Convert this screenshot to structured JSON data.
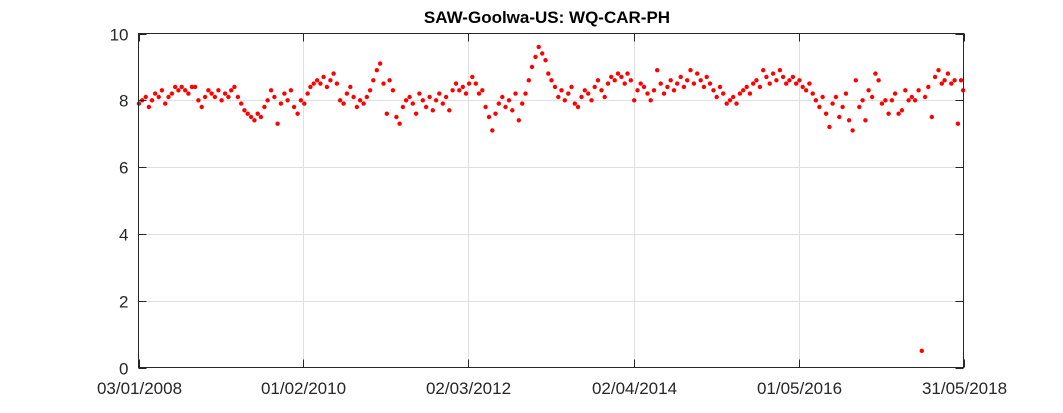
{
  "chart_data": {
    "type": "scatter",
    "title": "SAW-Goolwa-US: WQ-CAR-PH",
    "xlabel": "",
    "ylabel": "",
    "xlim": [
      "2008-01-03",
      "2018-05-31"
    ],
    "ylim": [
      0,
      10
    ],
    "x_ticks": [
      "03/01/2008",
      "01/02/2010",
      "02/03/2012",
      "02/04/2014",
      "01/05/2016",
      "31/05/2018"
    ],
    "x_tick_dates": [
      "2008-01-03",
      "2010-02-01",
      "2012-03-02",
      "2014-04-02",
      "2016-05-01",
      "2018-05-31"
    ],
    "y_ticks": [
      "0",
      "2",
      "4",
      "6",
      "8",
      "10"
    ],
    "y_tick_values": [
      0,
      2,
      4,
      6,
      8,
      10
    ],
    "grid": true,
    "marker_color": "#ff0000",
    "series": [
      {
        "name": "",
        "points": [
          [
            "2008-01-05",
            7.9
          ],
          [
            "2008-01-20",
            8.0
          ],
          [
            "2008-02-05",
            8.1
          ],
          [
            "2008-02-20",
            7.8
          ],
          [
            "2008-03-05",
            8.0
          ],
          [
            "2008-03-20",
            8.2
          ],
          [
            "2008-04-05",
            8.1
          ],
          [
            "2008-04-20",
            8.3
          ],
          [
            "2008-05-05",
            7.9
          ],
          [
            "2008-05-20",
            8.1
          ],
          [
            "2008-06-05",
            8.2
          ],
          [
            "2008-06-20",
            8.4
          ],
          [
            "2008-07-05",
            8.3
          ],
          [
            "2008-07-20",
            8.4
          ],
          [
            "2008-08-05",
            8.3
          ],
          [
            "2008-08-20",
            8.2
          ],
          [
            "2008-09-05",
            8.4
          ],
          [
            "2008-09-20",
            8.4
          ],
          [
            "2008-10-05",
            8.0
          ],
          [
            "2008-10-20",
            7.8
          ],
          [
            "2008-11-05",
            8.1
          ],
          [
            "2008-11-20",
            8.3
          ],
          [
            "2008-12-05",
            8.2
          ],
          [
            "2008-12-20",
            8.1
          ],
          [
            "2009-01-05",
            8.3
          ],
          [
            "2009-01-20",
            8.0
          ],
          [
            "2009-02-05",
            8.2
          ],
          [
            "2009-02-20",
            8.1
          ],
          [
            "2009-03-05",
            8.3
          ],
          [
            "2009-03-20",
            8.4
          ],
          [
            "2009-04-05",
            8.1
          ],
          [
            "2009-04-20",
            7.9
          ],
          [
            "2009-05-05",
            7.7
          ],
          [
            "2009-05-20",
            7.6
          ],
          [
            "2009-06-05",
            7.5
          ],
          [
            "2009-06-20",
            7.4
          ],
          [
            "2009-07-05",
            7.6
          ],
          [
            "2009-07-20",
            7.5
          ],
          [
            "2009-08-05",
            7.8
          ],
          [
            "2009-08-20",
            8.0
          ],
          [
            "2009-09-05",
            8.3
          ],
          [
            "2009-09-20",
            8.1
          ],
          [
            "2009-10-05",
            7.3
          ],
          [
            "2009-10-20",
            7.9
          ],
          [
            "2009-11-05",
            8.2
          ],
          [
            "2009-11-20",
            8.0
          ],
          [
            "2009-12-05",
            8.3
          ],
          [
            "2009-12-20",
            7.8
          ],
          [
            "2010-01-05",
            7.6
          ],
          [
            "2010-01-20",
            8.0
          ],
          [
            "2010-02-05",
            7.9
          ],
          [
            "2010-02-20",
            8.2
          ],
          [
            "2010-03-05",
            8.4
          ],
          [
            "2010-03-20",
            8.5
          ],
          [
            "2010-04-05",
            8.6
          ],
          [
            "2010-04-20",
            8.5
          ],
          [
            "2010-05-05",
            8.7
          ],
          [
            "2010-05-20",
            8.4
          ],
          [
            "2010-06-05",
            8.6
          ],
          [
            "2010-06-20",
            8.8
          ],
          [
            "2010-07-05",
            8.5
          ],
          [
            "2010-07-20",
            8.0
          ],
          [
            "2010-08-05",
            7.9
          ],
          [
            "2010-08-20",
            8.2
          ],
          [
            "2010-09-05",
            8.4
          ],
          [
            "2010-09-20",
            8.1
          ],
          [
            "2010-10-05",
            7.8
          ],
          [
            "2010-10-20",
            8.0
          ],
          [
            "2010-11-05",
            7.9
          ],
          [
            "2010-11-20",
            8.1
          ],
          [
            "2010-12-05",
            8.3
          ],
          [
            "2010-12-20",
            8.6
          ],
          [
            "2011-01-05",
            8.9
          ],
          [
            "2011-01-20",
            9.1
          ],
          [
            "2011-02-05",
            8.5
          ],
          [
            "2011-02-20",
            7.6
          ],
          [
            "2011-03-05",
            8.6
          ],
          [
            "2011-03-20",
            8.3
          ],
          [
            "2011-04-05",
            7.5
          ],
          [
            "2011-04-20",
            7.3
          ],
          [
            "2011-05-05",
            7.8
          ],
          [
            "2011-05-20",
            8.0
          ],
          [
            "2011-06-05",
            8.1
          ],
          [
            "2011-06-20",
            7.9
          ],
          [
            "2011-07-05",
            7.6
          ],
          [
            "2011-07-20",
            8.2
          ],
          [
            "2011-08-05",
            8.0
          ],
          [
            "2011-08-20",
            7.8
          ],
          [
            "2011-09-05",
            8.1
          ],
          [
            "2011-09-20",
            7.7
          ],
          [
            "2011-10-05",
            8.0
          ],
          [
            "2011-10-20",
            8.2
          ],
          [
            "2011-11-05",
            7.9
          ],
          [
            "2011-11-20",
            8.1
          ],
          [
            "2011-12-05",
            7.7
          ],
          [
            "2011-12-20",
            8.3
          ],
          [
            "2012-01-05",
            8.5
          ],
          [
            "2012-01-20",
            8.3
          ],
          [
            "2012-02-05",
            8.4
          ],
          [
            "2012-02-20",
            8.2
          ],
          [
            "2012-03-05",
            8.5
          ],
          [
            "2012-03-20",
            8.7
          ],
          [
            "2012-04-05",
            8.5
          ],
          [
            "2012-04-20",
            8.2
          ],
          [
            "2012-05-05",
            8.3
          ],
          [
            "2012-05-20",
            7.8
          ],
          [
            "2012-06-05",
            7.5
          ],
          [
            "2012-06-20",
            7.1
          ],
          [
            "2012-07-05",
            7.6
          ],
          [
            "2012-07-20",
            7.9
          ],
          [
            "2012-08-05",
            8.1
          ],
          [
            "2012-08-20",
            7.8
          ],
          [
            "2012-09-05",
            8.0
          ],
          [
            "2012-09-20",
            7.7
          ],
          [
            "2012-10-05",
            8.2
          ],
          [
            "2012-10-20",
            7.4
          ],
          [
            "2012-11-05",
            7.9
          ],
          [
            "2012-11-20",
            8.2
          ],
          [
            "2012-12-05",
            8.6
          ],
          [
            "2012-12-20",
            9.0
          ],
          [
            "2013-01-05",
            9.3
          ],
          [
            "2013-01-20",
            9.6
          ],
          [
            "2013-02-05",
            9.4
          ],
          [
            "2013-02-20",
            9.2
          ],
          [
            "2013-03-05",
            8.8
          ],
          [
            "2013-03-20",
            8.6
          ],
          [
            "2013-04-05",
            8.4
          ],
          [
            "2013-04-20",
            8.1
          ],
          [
            "2013-05-05",
            8.3
          ],
          [
            "2013-05-20",
            8.0
          ],
          [
            "2013-06-05",
            8.2
          ],
          [
            "2013-06-20",
            8.4
          ],
          [
            "2013-07-05",
            7.9
          ],
          [
            "2013-07-20",
            7.8
          ],
          [
            "2013-08-05",
            8.1
          ],
          [
            "2013-08-20",
            8.3
          ],
          [
            "2013-09-05",
            8.2
          ],
          [
            "2013-09-20",
            8.0
          ],
          [
            "2013-10-05",
            8.4
          ],
          [
            "2013-10-20",
            8.6
          ],
          [
            "2013-11-05",
            8.3
          ],
          [
            "2013-11-20",
            8.1
          ],
          [
            "2013-12-05",
            8.5
          ],
          [
            "2013-12-20",
            8.7
          ],
          [
            "2014-01-05",
            8.6
          ],
          [
            "2014-01-20",
            8.8
          ],
          [
            "2014-02-05",
            8.7
          ],
          [
            "2014-02-20",
            8.5
          ],
          [
            "2014-03-05",
            8.8
          ],
          [
            "2014-03-20",
            8.6
          ],
          [
            "2014-04-05",
            8.0
          ],
          [
            "2014-04-20",
            8.3
          ],
          [
            "2014-05-05",
            8.5
          ],
          [
            "2014-05-20",
            8.4
          ],
          [
            "2014-06-05",
            8.2
          ],
          [
            "2014-06-20",
            8.0
          ],
          [
            "2014-07-05",
            8.3
          ],
          [
            "2014-07-20",
            8.9
          ],
          [
            "2014-08-05",
            8.5
          ],
          [
            "2014-08-20",
            8.2
          ],
          [
            "2014-09-05",
            8.4
          ],
          [
            "2014-09-20",
            8.6
          ],
          [
            "2014-10-05",
            8.3
          ],
          [
            "2014-10-20",
            8.5
          ],
          [
            "2014-11-05",
            8.7
          ],
          [
            "2014-11-20",
            8.4
          ],
          [
            "2014-12-05",
            8.6
          ],
          [
            "2014-12-20",
            8.9
          ],
          [
            "2015-01-05",
            8.5
          ],
          [
            "2015-01-20",
            8.8
          ],
          [
            "2015-02-05",
            8.6
          ],
          [
            "2015-02-20",
            8.4
          ],
          [
            "2015-03-05",
            8.7
          ],
          [
            "2015-03-20",
            8.5
          ],
          [
            "2015-04-05",
            8.3
          ],
          [
            "2015-04-20",
            8.1
          ],
          [
            "2015-05-05",
            8.4
          ],
          [
            "2015-05-20",
            8.2
          ],
          [
            "2015-06-05",
            7.9
          ],
          [
            "2015-06-20",
            8.0
          ],
          [
            "2015-07-05",
            8.1
          ],
          [
            "2015-07-20",
            7.9
          ],
          [
            "2015-08-05",
            8.2
          ],
          [
            "2015-08-20",
            8.3
          ],
          [
            "2015-09-05",
            8.4
          ],
          [
            "2015-09-20",
            8.2
          ],
          [
            "2015-10-05",
            8.5
          ],
          [
            "2015-10-20",
            8.6
          ],
          [
            "2015-11-05",
            8.4
          ],
          [
            "2015-11-20",
            8.9
          ],
          [
            "2015-12-05",
            8.7
          ],
          [
            "2015-12-20",
            8.5
          ],
          [
            "2016-01-05",
            8.8
          ],
          [
            "2016-01-20",
            8.6
          ],
          [
            "2016-02-05",
            8.9
          ],
          [
            "2016-02-20",
            8.7
          ],
          [
            "2016-03-05",
            8.5
          ],
          [
            "2016-03-20",
            8.6
          ],
          [
            "2016-04-05",
            8.7
          ],
          [
            "2016-04-20",
            8.5
          ],
          [
            "2016-05-05",
            8.6
          ],
          [
            "2016-05-20",
            8.4
          ],
          [
            "2016-06-05",
            8.3
          ],
          [
            "2016-06-20",
            8.5
          ],
          [
            "2016-07-05",
            8.2
          ],
          [
            "2016-07-20",
            8.0
          ],
          [
            "2016-08-05",
            7.8
          ],
          [
            "2016-08-20",
            8.1
          ],
          [
            "2016-09-05",
            7.6
          ],
          [
            "2016-09-20",
            7.2
          ],
          [
            "2016-10-05",
            7.9
          ],
          [
            "2016-10-20",
            8.1
          ],
          [
            "2016-11-05",
            7.5
          ],
          [
            "2016-11-20",
            7.8
          ],
          [
            "2016-12-05",
            8.2
          ],
          [
            "2016-12-20",
            7.4
          ],
          [
            "2017-01-05",
            7.1
          ],
          [
            "2017-01-20",
            8.6
          ],
          [
            "2017-02-05",
            7.8
          ],
          [
            "2017-02-20",
            8.0
          ],
          [
            "2017-03-05",
            7.4
          ],
          [
            "2017-03-20",
            8.3
          ],
          [
            "2017-04-05",
            8.1
          ],
          [
            "2017-04-20",
            8.8
          ],
          [
            "2017-05-05",
            8.6
          ],
          [
            "2017-05-20",
            7.9
          ],
          [
            "2017-06-05",
            8.0
          ],
          [
            "2017-06-20",
            7.6
          ],
          [
            "2017-07-05",
            8.0
          ],
          [
            "2017-07-20",
            8.2
          ],
          [
            "2017-08-05",
            7.6
          ],
          [
            "2017-08-20",
            7.7
          ],
          [
            "2017-09-05",
            8.3
          ],
          [
            "2017-09-20",
            8.0
          ],
          [
            "2017-10-05",
            8.1
          ],
          [
            "2017-10-20",
            8.0
          ],
          [
            "2017-11-05",
            8.3
          ],
          [
            "2017-11-20",
            0.5
          ],
          [
            "2017-12-05",
            8.1
          ],
          [
            "2017-12-20",
            8.4
          ],
          [
            "2018-01-05",
            7.5
          ],
          [
            "2018-01-20",
            8.7
          ],
          [
            "2018-02-05",
            8.9
          ],
          [
            "2018-02-20",
            8.5
          ],
          [
            "2018-03-05",
            8.6
          ],
          [
            "2018-03-20",
            8.8
          ],
          [
            "2018-04-05",
            8.5
          ],
          [
            "2018-04-20",
            8.6
          ],
          [
            "2018-05-05",
            7.3
          ],
          [
            "2018-05-20",
            8.6
          ],
          [
            "2018-05-29",
            8.3
          ]
        ]
      }
    ]
  }
}
